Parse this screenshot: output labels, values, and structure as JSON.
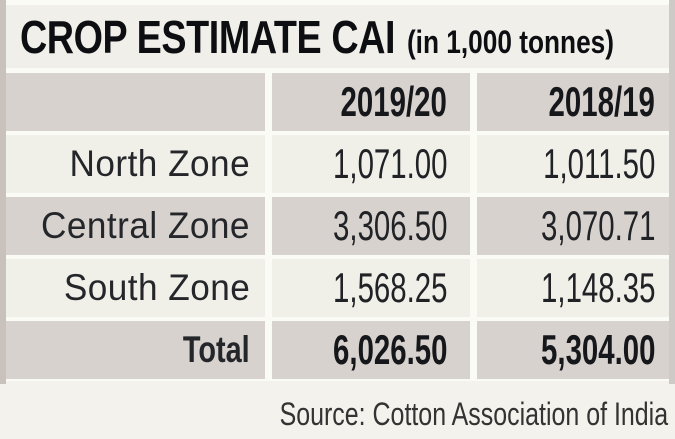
{
  "title": {
    "main": "CROP ESTIMATE CAI",
    "unit": "(in 1,000 tonnes)"
  },
  "table": {
    "columns": [
      "",
      "2019/20",
      "2018/19"
    ],
    "rows": [
      {
        "label": "North Zone",
        "v1": "1,071.00",
        "v2": "1,011.50"
      },
      {
        "label": "Central Zone",
        "v1": "3,306.50",
        "v2": "3,070.71"
      },
      {
        "label": "South Zone",
        "v1": "1,568.25",
        "v2": "1,148.35"
      }
    ],
    "total": {
      "label": "Total",
      "v1": "6,026.50",
      "v2": "5,304.00"
    }
  },
  "source": "Source: Cotton Association of India",
  "colors": {
    "page_background": "#f3f2ed",
    "title_background": "#f0efe9",
    "cell_gray": "#d7d2ce",
    "cell_light": "#f0f0e9",
    "text": "#1b1c20"
  },
  "chart_data": {
    "type": "table",
    "title": "CROP ESTIMATE CAI (in 1,000 tonnes)",
    "categories": [
      "North Zone",
      "Central Zone",
      "South Zone",
      "Total"
    ],
    "series": [
      {
        "name": "2019/20",
        "values": [
          1071.0,
          3306.5,
          1568.25,
          6026.5
        ]
      },
      {
        "name": "2018/19",
        "values": [
          1011.5,
          3070.71,
          1148.35,
          5304.0
        ]
      }
    ],
    "footnote": "Source: Cotton Association of India",
    "layout": {
      "legend_position": "column-headers",
      "grid": "off"
    }
  }
}
